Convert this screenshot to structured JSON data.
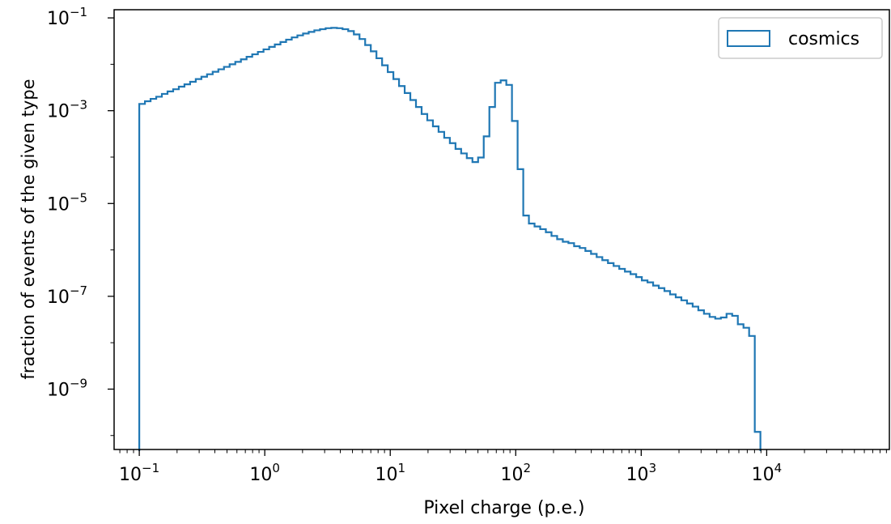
{
  "chart_data": {
    "type": "histogram-step",
    "xlabel": "Pixel charge (p.e.)",
    "ylabel": "fraction of events of the given type",
    "x_scale": "log",
    "y_scale": "log",
    "xlim": [
      0.063,
      95000
    ],
    "ylim": [
      5e-11,
      0.15
    ],
    "xticks": [
      {
        "value": 0.1,
        "base": "10",
        "exp": "−1"
      },
      {
        "value": 1,
        "base": "10",
        "exp": "0"
      },
      {
        "value": 10,
        "base": "10",
        "exp": "1"
      },
      {
        "value": 100,
        "base": "10",
        "exp": "2"
      },
      {
        "value": 1000,
        "base": "10",
        "exp": "3"
      },
      {
        "value": 10000,
        "base": "10",
        "exp": "4"
      }
    ],
    "yticks": [
      {
        "value": 1e-09,
        "base": "10",
        "exp": "−9"
      },
      {
        "value": 1e-07,
        "base": "10",
        "exp": "−7"
      },
      {
        "value": 1e-05,
        "base": "10",
        "exp": "−5"
      },
      {
        "value": 0.001,
        "base": "10",
        "exp": "−3"
      },
      {
        "value": 0.1,
        "base": "10",
        "exp": "−1"
      }
    ],
    "legend": {
      "placement": "top-right"
    },
    "series": [
      {
        "name": "cosmics",
        "color": "#1f77b4",
        "bin_edges_log10": [
          -1.0,
          3.95
        ],
        "values": [
          0.0014,
          0.0016,
          0.0018,
          0.002,
          0.0023,
          0.0026,
          0.0029,
          0.0033,
          0.0037,
          0.0042,
          0.0048,
          0.0054,
          0.0061,
          0.0069,
          0.0078,
          0.0088,
          0.01,
          0.0113,
          0.0128,
          0.0145,
          0.0164,
          0.0185,
          0.021,
          0.0237,
          0.0268,
          0.0302,
          0.034,
          0.038,
          0.042,
          0.046,
          0.05,
          0.054,
          0.057,
          0.06,
          0.061,
          0.06,
          0.057,
          0.052,
          0.044,
          0.035,
          0.026,
          0.019,
          0.0135,
          0.0095,
          0.0068,
          0.0048,
          0.0034,
          0.0024,
          0.0017,
          0.0012,
          0.00085,
          0.00062,
          0.00046,
          0.00035,
          0.00026,
          0.0002,
          0.00015,
          0.00012,
          9.5e-05,
          7.8e-05,
          9.8e-05,
          0.00028,
          0.0012,
          0.004,
          0.0045,
          0.0036,
          0.0006,
          5.5e-05,
          5.5e-06,
          3.7e-06,
          3.2e-06,
          2.8e-06,
          2.4e-06,
          2e-06,
          1.7e-06,
          1.5e-06,
          1.4e-06,
          1.2e-06,
          1.1e-06,
          9.5e-07,
          8.2e-07,
          7e-07,
          6e-07,
          5.2e-07,
          4.5e-07,
          3.9e-07,
          3.4e-07,
          3e-07,
          2.6e-07,
          2.2e-07,
          2e-07,
          1.7e-07,
          1.5e-07,
          1.3e-07,
          1.1e-07,
          9.5e-08,
          8.2e-08,
          7e-08,
          6e-08,
          5e-08,
          4.2e-08,
          3.6e-08,
          3.3e-08,
          3.5e-08,
          4.2e-08,
          3.8e-08,
          2.5e-08,
          2.1e-08,
          1.4e-08,
          1.2e-10
        ]
      }
    ]
  }
}
